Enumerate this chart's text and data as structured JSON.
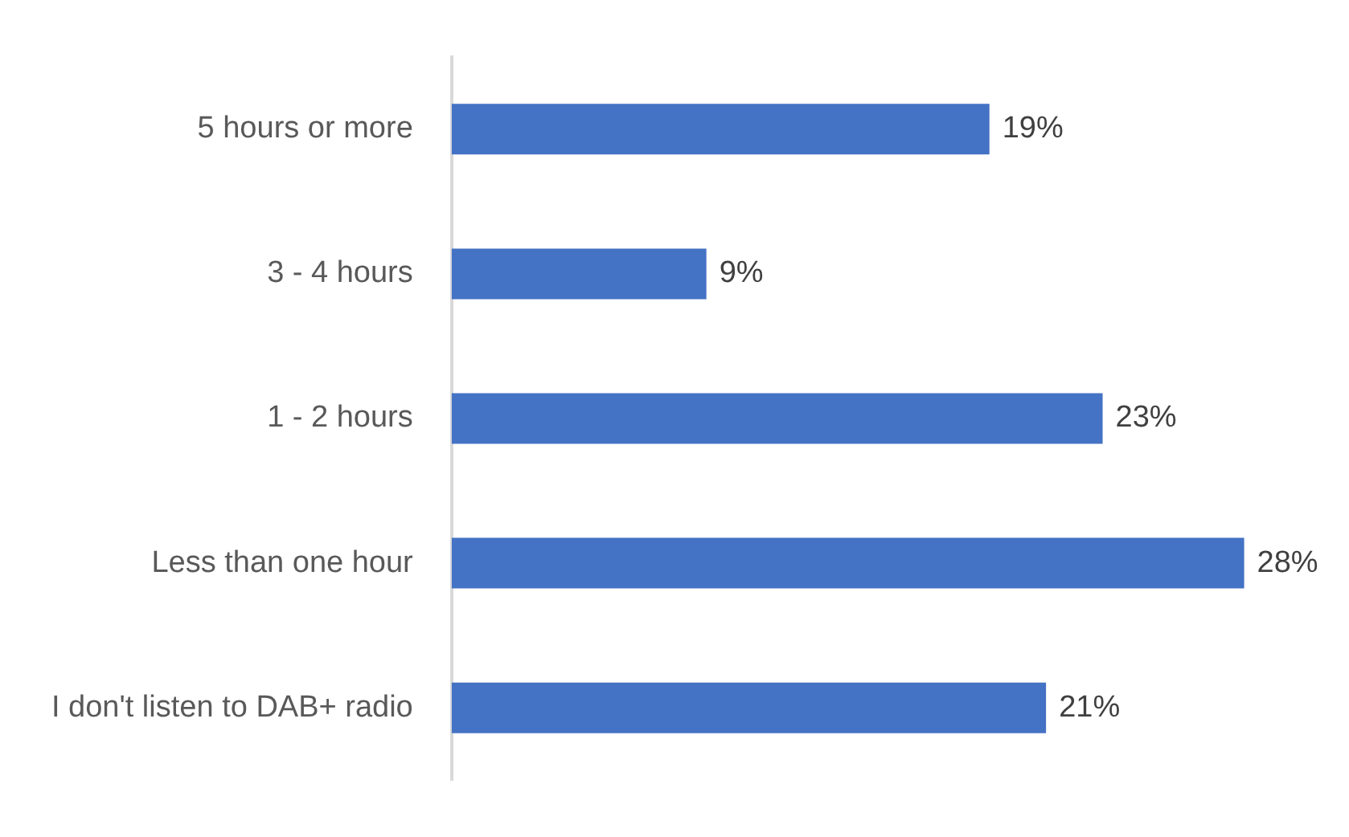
{
  "chart_data": {
    "type": "bar",
    "orientation": "horizontal",
    "categories": [
      "5 hours or more",
      "3 - 4 hours",
      "1 - 2 hours",
      "Less than one hour",
      "I don't listen to DAB+ radio"
    ],
    "values": [
      19,
      9,
      23,
      28,
      21
    ],
    "color": "#4472c4",
    "value_labels": [
      "19%",
      "9%",
      "23%",
      "28%",
      "21%"
    ],
    "grid": false,
    "legend": false,
    "tick_labels": "y"
  }
}
